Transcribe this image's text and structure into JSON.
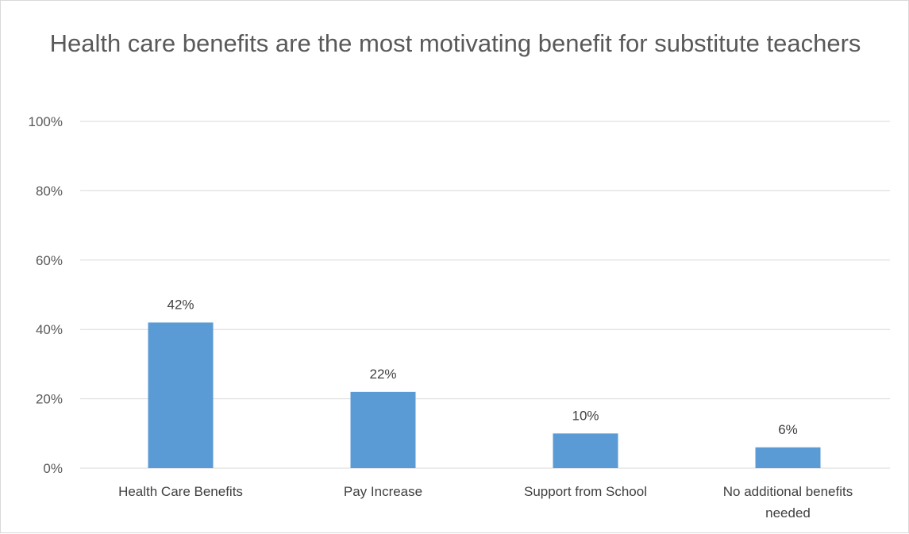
{
  "chart_data": {
    "type": "bar",
    "title": "Health care benefits are the most motivating benefit for substitute teachers",
    "categories": [
      "Health Care Benefits",
      "Pay Increase",
      "Support from School",
      "No additional benefits needed"
    ],
    "category_label_lines": [
      [
        "Health Care Benefits"
      ],
      [
        "Pay Increase"
      ],
      [
        "Support from School"
      ],
      [
        "No additional benefits",
        "needed"
      ]
    ],
    "values": [
      42,
      22,
      10,
      6
    ],
    "data_labels": [
      "42%",
      "22%",
      "10%",
      "6%"
    ],
    "ylim": [
      0,
      100
    ],
    "y_ticks": [
      0,
      20,
      40,
      60,
      80,
      100
    ],
    "y_tick_labels": [
      "0%",
      "20%",
      "40%",
      "60%",
      "80%",
      "100%"
    ],
    "xlabel": "",
    "ylabel": "",
    "grid": true,
    "legend": "none",
    "bar_color": "#5b9bd5"
  }
}
